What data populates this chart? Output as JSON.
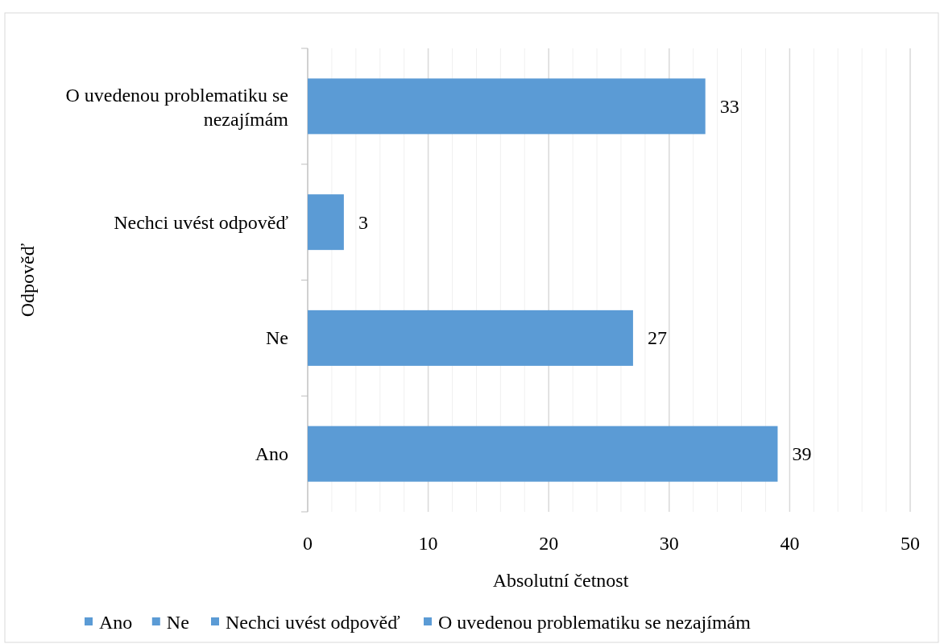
{
  "chart_data": {
    "type": "bar",
    "orientation": "horizontal",
    "categories": [
      "O uvedenou problematiku se nezajímám",
      "Nechci uvést odpověď",
      "Ne",
      "Ano"
    ],
    "series": [
      {
        "name": "Ano",
        "color": "#5b9bd5",
        "values": [
          null,
          null,
          null,
          39
        ]
      },
      {
        "name": "Ne",
        "color": "#5b9bd5",
        "values": [
          null,
          null,
          27,
          null
        ]
      },
      {
        "name": "Nechci uvést odpověď",
        "color": "#5b9bd5",
        "values": [
          null,
          3,
          null,
          null
        ]
      },
      {
        "name": "O uvedenou problematiku se nezajímám",
        "color": "#5b9bd5",
        "values": [
          33,
          null,
          null,
          null
        ]
      }
    ],
    "xlabel": "Absolutní četnost",
    "ylabel": "Odpověď",
    "xlim": [
      0,
      50
    ],
    "xticks": [
      0,
      {
        "value": 2,
        "label": null
      },
      {
        "value": 4,
        "label": null
      },
      {
        "value": 6,
        "label": null
      },
      {
        "value": 8,
        "label": null
      },
      10,
      {
        "value": 12,
        "label": null
      },
      {
        "value": 14,
        "label": null
      },
      {
        "value": 16,
        "label": null
      },
      {
        "value": 18,
        "label": null
      },
      20,
      {
        "value": 22,
        "label": null
      },
      {
        "value": 24,
        "label": null
      },
      {
        "value": 26,
        "label": null
      },
      {
        "value": 28,
        "label": null
      },
      30,
      {
        "value": 32,
        "label": null
      },
      {
        "value": 34,
        "label": null
      },
      {
        "value": 36,
        "label": null
      },
      {
        "value": 38,
        "label": null
      },
      40,
      {
        "value": 42,
        "label": null
      },
      {
        "value": 44,
        "label": null
      },
      {
        "value": 46,
        "label": null
      },
      {
        "value": 48,
        "label": null
      },
      50
    ],
    "grid": "x",
    "data_labels": true,
    "legend": "bottom"
  }
}
